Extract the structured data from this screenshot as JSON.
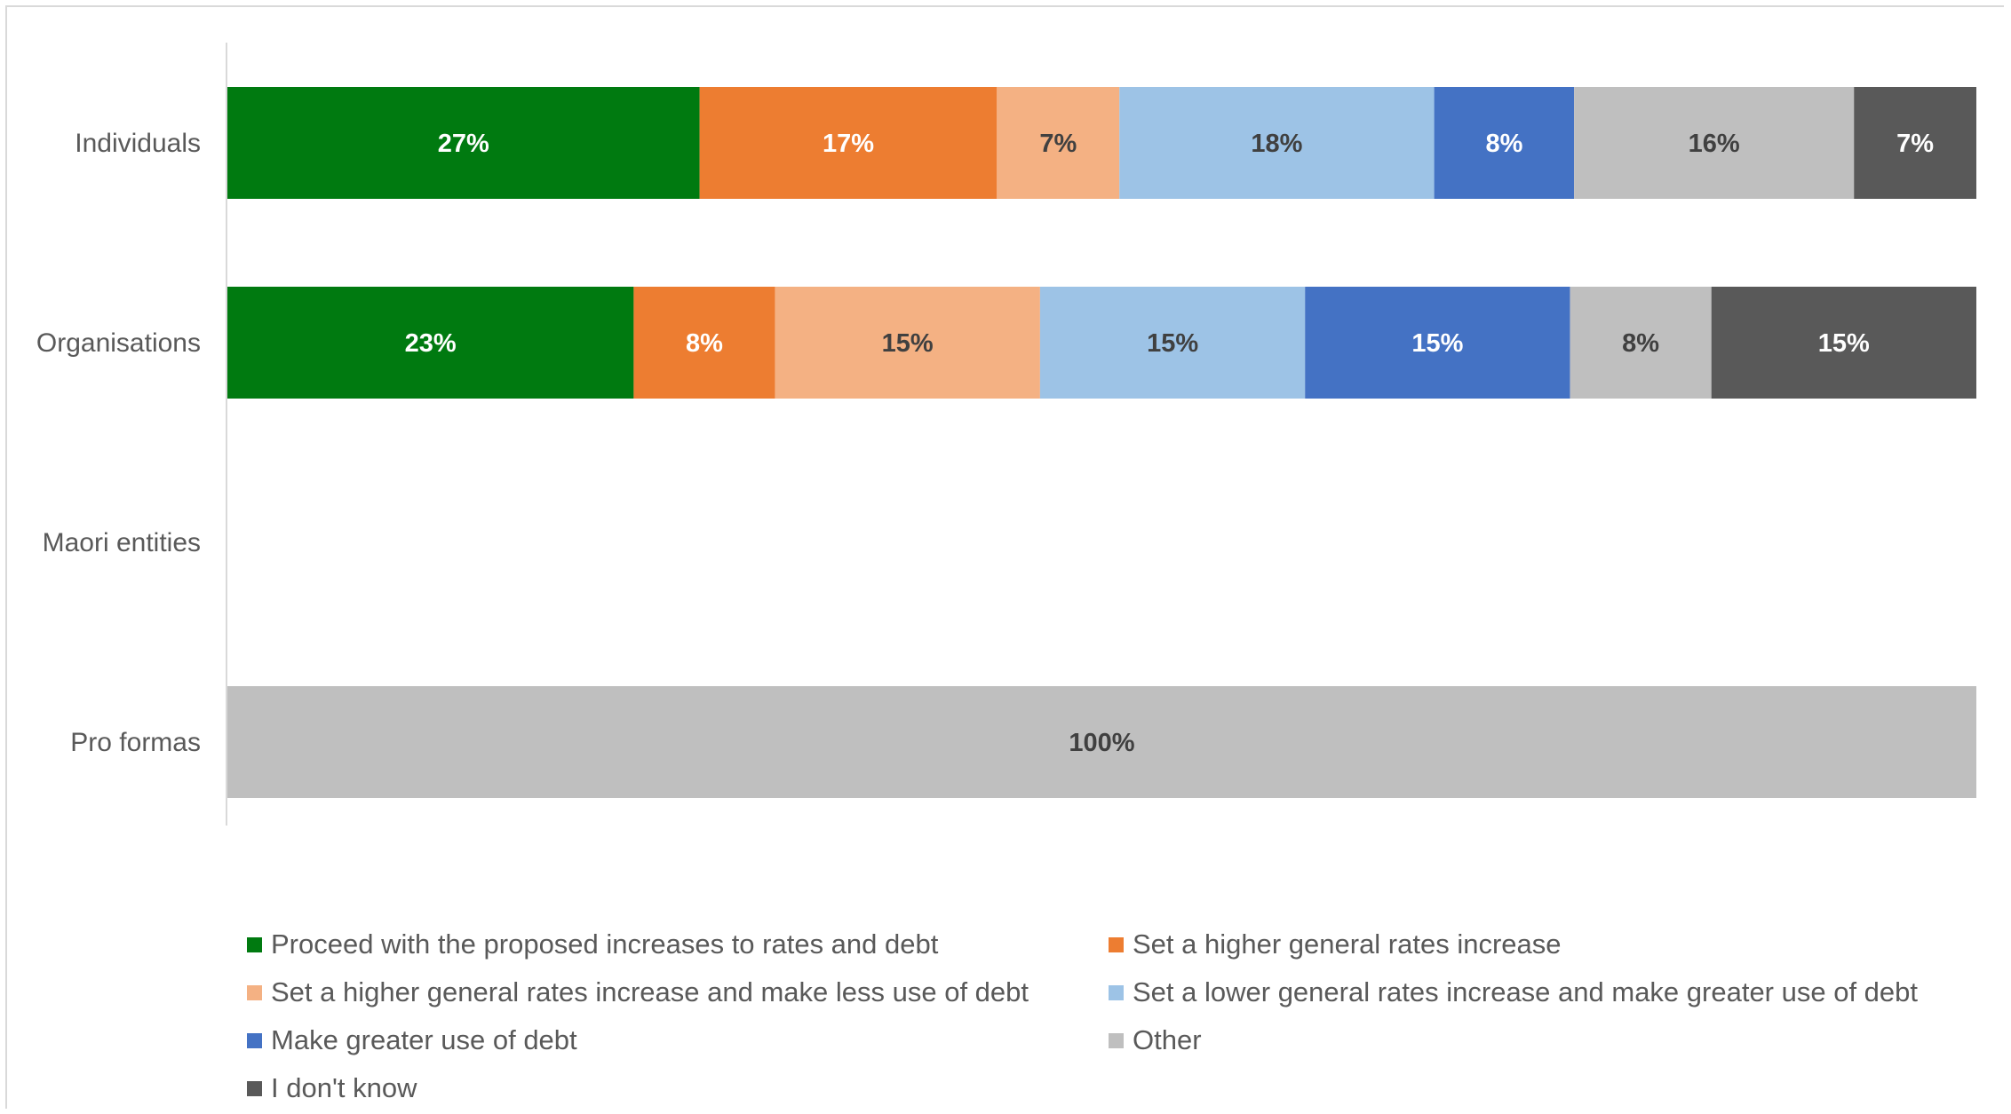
{
  "chart_data": {
    "type": "bar",
    "orientation": "horizontal",
    "stacked": "percent",
    "categories": [
      "Individuals",
      "Organisations",
      "Maori entities",
      "Pro formas"
    ],
    "series": [
      {
        "name": "Proceed with the proposed increases to rates and debt",
        "color": "#007a10",
        "values": [
          27,
          23,
          0,
          0
        ],
        "labels": [
          "27%",
          "23%",
          "",
          ""
        ]
      },
      {
        "name": "Set a higher general rates increase",
        "color": "#ed7d31",
        "values": [
          17,
          8,
          0,
          0
        ],
        "labels": [
          "17%",
          "8%",
          "",
          ""
        ]
      },
      {
        "name": "Set a higher general rates increase and make less use of debt",
        "color": "#f4b183",
        "values": [
          7,
          15,
          0,
          0
        ],
        "labels": [
          "7%",
          "15%",
          "",
          ""
        ]
      },
      {
        "name": "Set a lower general rates increase and make greater use of debt",
        "color": "#9dc3e6",
        "values": [
          18,
          15,
          0,
          0
        ],
        "labels": [
          "18%",
          "15%",
          "",
          ""
        ]
      },
      {
        "name": "Make greater use of debt",
        "color": "#4472c4",
        "values": [
          8,
          15,
          0,
          0
        ],
        "labels": [
          "8%",
          "15%",
          "",
          ""
        ]
      },
      {
        "name": "Other",
        "color": "#bfbfbf",
        "values": [
          16,
          8,
          0,
          100
        ],
        "labels": [
          "16%",
          "8%",
          "",
          "100%"
        ]
      },
      {
        "name": "I don't know",
        "color": "#595959",
        "values": [
          7,
          15,
          0,
          0
        ],
        "labels": [
          "7%",
          "15%",
          "",
          ""
        ]
      }
    ],
    "legend_placement": "bottom",
    "grid": false
  }
}
